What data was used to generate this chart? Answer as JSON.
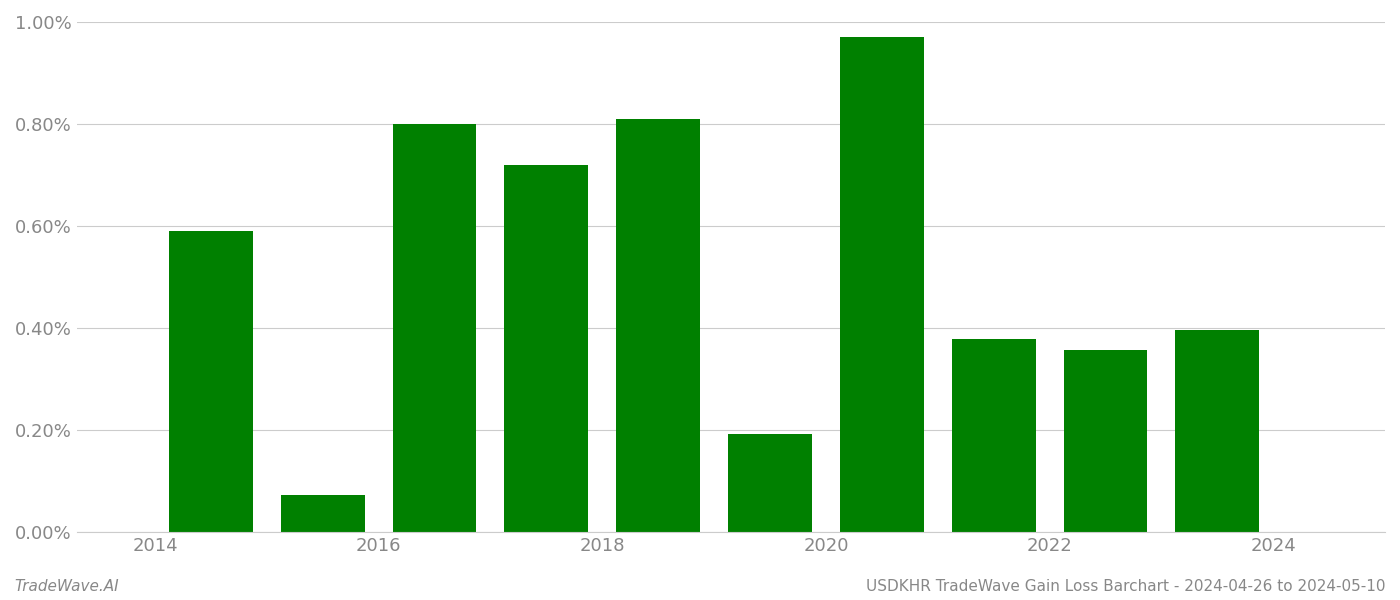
{
  "years": [
    2014,
    2015,
    2016,
    2017,
    2018,
    2019,
    2020,
    2021,
    2022,
    2023
  ],
  "values": [
    0.0059,
    0.00073,
    0.008,
    0.0072,
    0.0081,
    0.00193,
    0.0097,
    0.00378,
    0.00357,
    0.00397
  ],
  "bar_color": "#008000",
  "background_color": "#ffffff",
  "grid_color": "#cccccc",
  "tick_color": "#888888",
  "ylim_min": 0.0,
  "ylim_max": 0.01,
  "yticks": [
    0.0,
    0.002,
    0.004,
    0.006,
    0.008,
    0.01
  ],
  "ytick_labels": [
    "0.00%",
    "0.20%",
    "0.40%",
    "0.60%",
    "0.80%",
    "1.00%"
  ],
  "xtick_positions": [
    2013.5,
    2015.5,
    2017.5,
    2019.5,
    2021.5,
    2023.5
  ],
  "xtick_labels": [
    "2014",
    "2016",
    "2018",
    "2020",
    "2022",
    "2024"
  ],
  "xlim_min": 2012.8,
  "xlim_max": 2024.5,
  "footer_left": "TradeWave.AI",
  "footer_right": "USDKHR TradeWave Gain Loss Barchart - 2024-04-26 to 2024-05-10",
  "footer_fontsize": 11,
  "tick_fontsize": 13,
  "bar_width": 0.75
}
